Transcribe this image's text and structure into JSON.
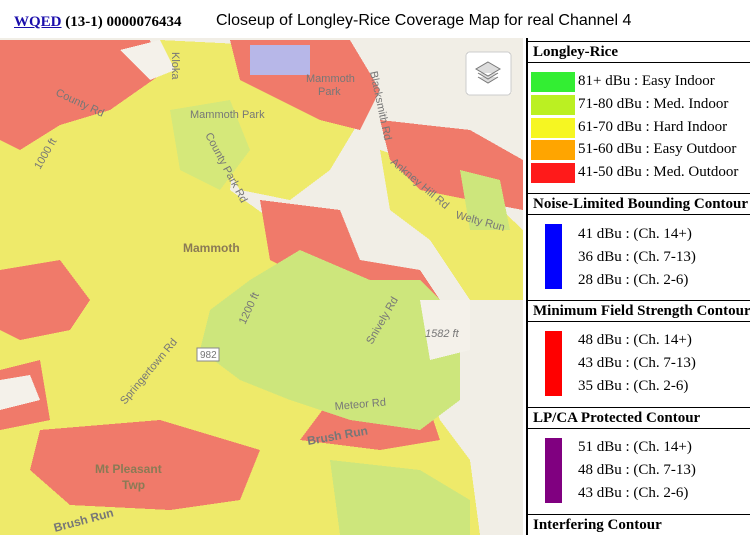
{
  "header": {
    "station": "WQED",
    "id": "(13-1) 0000076434",
    "title": "Closeup of Longley-Rice Coverage Map for real Channel 4"
  },
  "map": {
    "labels": [
      "Kloka",
      "Mammoth",
      "Park",
      "Mammoth Park",
      "County Rd",
      "County Park Rd",
      "Blacksmith Rd",
      "Ankney Hill Rd",
      "Welty Run",
      "1000 ft",
      "Mammoth",
      "1200 ft",
      "Snively Rd",
      "1582 ft",
      "982",
      "Springertown Rd",
      "Meteor Rd",
      "Brush Run",
      "Mt Pleasant",
      "Twp",
      "Brush Run"
    ]
  },
  "legend": {
    "sections": [
      {
        "title": "Longley-Rice",
        "items": [
          "81+ dBu : Easy Indoor",
          "71-80 dBu : Med. Indoor",
          "61-70 dBu : Hard Indoor",
          "51-60 dBu : Easy Outdoor",
          "41-50 dBu : Med. Outdoor"
        ]
      },
      {
        "title": "Noise-Limited Bounding Contour",
        "items": [
          "41 dBu : (Ch. 14+)",
          "36 dBu : (Ch. 7-13)",
          "28 dBu : (Ch. 2-6)"
        ]
      },
      {
        "title": "Minimum Field Strength Contour",
        "items": [
          "48 dBu : (Ch. 14+)",
          "43 dBu : (Ch. 7-13)",
          "35 dBu : (Ch. 2-6)"
        ]
      },
      {
        "title": "LP/CA Protected Contour",
        "items": [
          "51 dBu : (Ch. 14+)",
          "48 dBu : (Ch. 7-13)",
          "43 dBu : (Ch. 2-6)"
        ]
      },
      {
        "title": "Interfering Contour",
        "items": []
      }
    ]
  }
}
